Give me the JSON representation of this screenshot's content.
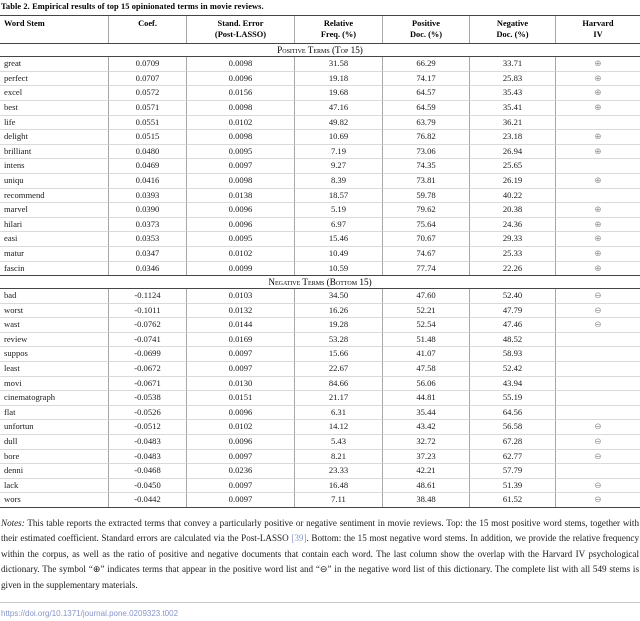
{
  "title": "Table 2. Empirical results of top 15 opinionated terms in movie reviews.",
  "table": {
    "headers": [
      {
        "line1": "Word Stem",
        "line2": ""
      },
      {
        "line1": "Coef.",
        "line2": ""
      },
      {
        "line1": "Stand. Error",
        "line2": "(Post-LASSO)"
      },
      {
        "line1": "Relative",
        "line2": "Freq. (%)"
      },
      {
        "line1": "Positive",
        "line2": "Doc. (%)"
      },
      {
        "line1": "Negative",
        "line2": "Doc. (%)"
      },
      {
        "line1": "Harvard",
        "line2": "IV"
      }
    ],
    "harvard_positive_symbol": "⊕",
    "harvard_negative_symbol": "⊖",
    "sections": [
      {
        "header": "Positive Terms (Top 15)",
        "rows": [
          [
            "great",
            "0.0709",
            "0.0098",
            "31.58",
            "66.29",
            "33.71",
            "⊕"
          ],
          [
            "perfect",
            "0.0707",
            "0.0096",
            "19.18",
            "74.17",
            "25.83",
            "⊕"
          ],
          [
            "excel",
            "0.0572",
            "0.0156",
            "19.68",
            "64.57",
            "35.43",
            "⊕"
          ],
          [
            "best",
            "0.0571",
            "0.0098",
            "47.16",
            "64.59",
            "35.41",
            "⊕"
          ],
          [
            "life",
            "0.0551",
            "0.0102",
            "49.82",
            "63.79",
            "36.21",
            ""
          ],
          [
            "delight",
            "0.0515",
            "0.0098",
            "10.69",
            "76.82",
            "23.18",
            "⊕"
          ],
          [
            "brilliant",
            "0.0480",
            "0.0095",
            "7.19",
            "73.06",
            "26.94",
            "⊕"
          ],
          [
            "intens",
            "0.0469",
            "0.0097",
            "9.27",
            "74.35",
            "25.65",
            ""
          ],
          [
            "uniqu",
            "0.0416",
            "0.0098",
            "8.39",
            "73.81",
            "26.19",
            "⊕"
          ],
          [
            "recommend",
            "0.0393",
            "0.0138",
            "18.57",
            "59.78",
            "40.22",
            ""
          ],
          [
            "marvel",
            "0.0390",
            "0.0096",
            "5.19",
            "79.62",
            "20.38",
            "⊕"
          ],
          [
            "hilari",
            "0.0373",
            "0.0096",
            "6.97",
            "75.64",
            "24.36",
            "⊕"
          ],
          [
            "easi",
            "0.0353",
            "0.0095",
            "15.46",
            "70.67",
            "29.33",
            "⊕"
          ],
          [
            "matur",
            "0.0347",
            "0.0102",
            "10.49",
            "74.67",
            "25.33",
            "⊕"
          ],
          [
            "fascin",
            "0.0346",
            "0.0099",
            "10.59",
            "77.74",
            "22.26",
            "⊕"
          ]
        ]
      },
      {
        "header": "Negative Terms (Bottom 15)",
        "rows": [
          [
            "bad",
            "-0.1124",
            "0.0103",
            "34.50",
            "47.60",
            "52.40",
            "⊖"
          ],
          [
            "worst",
            "-0.1011",
            "0.0132",
            "16.26",
            "52.21",
            "47.79",
            "⊖"
          ],
          [
            "wast",
            "-0.0762",
            "0.0144",
            "19.28",
            "52.54",
            "47.46",
            "⊖"
          ],
          [
            "review",
            "-0.0741",
            "0.0169",
            "53.28",
            "51.48",
            "48.52",
            ""
          ],
          [
            "suppos",
            "-0.0699",
            "0.0097",
            "15.66",
            "41.07",
            "58.93",
            ""
          ],
          [
            "least",
            "-0.0672",
            "0.0097",
            "22.67",
            "47.58",
            "52.42",
            ""
          ],
          [
            "movi",
            "-0.0671",
            "0.0130",
            "84.66",
            "56.06",
            "43.94",
            ""
          ],
          [
            "cinematograph",
            "-0.0538",
            "0.0151",
            "21.17",
            "44.81",
            "55.19",
            ""
          ],
          [
            "flat",
            "-0.0526",
            "0.0096",
            "6.31",
            "35.44",
            "64.56",
            ""
          ],
          [
            "unfortun",
            "-0.0512",
            "0.0102",
            "14.12",
            "43.42",
            "56.58",
            "⊖"
          ],
          [
            "dull",
            "-0.0483",
            "0.0096",
            "5.43",
            "32.72",
            "67.28",
            "⊖"
          ],
          [
            "bore",
            "-0.0483",
            "0.0097",
            "8.21",
            "37.23",
            "62.77",
            "⊖"
          ],
          [
            "denni",
            "-0.0468",
            "0.0236",
            "23.33",
            "42.21",
            "57.79",
            ""
          ],
          [
            "lack",
            "-0.0450",
            "0.0097",
            "16.48",
            "48.61",
            "51.39",
            "⊖"
          ],
          [
            "wors",
            "-0.0442",
            "0.0097",
            "7.11",
            "38.48",
            "61.52",
            "⊖"
          ]
        ]
      }
    ]
  },
  "notes": {
    "label": "Notes:",
    "part1": " This table reports the extracted terms that convey a particularly positive or negative sentiment in movie reviews. Top: the 15 most positive word stems, together with their estimated coefficient. Standard errors are calculated via the Post-LASSO ",
    "ref": "[39]",
    "part2": ". Bottom: the 15 most negative word stems. In addition, we provide the relative frequency within the corpus, as well as the ratio of positive and negative documents that contain each word. The last column show the overlap with the Harvard IV psychological dictionary. The symbol “⊕” indicates terms that appear in the positive word list and “⊖” in the negative word list of this dictionary. The complete list with all 549 stems is given in the supplementary materials."
  },
  "doi_link": "https://doi.org/10.1371/journal.pone.0209323.t002",
  "colors": {
    "link": "#8795c7",
    "harvard_symbol": "#8f8f8f",
    "rule_dark": "#454545",
    "rule_light": "#dadada",
    "rule_vertical": "#a8a8a8"
  }
}
